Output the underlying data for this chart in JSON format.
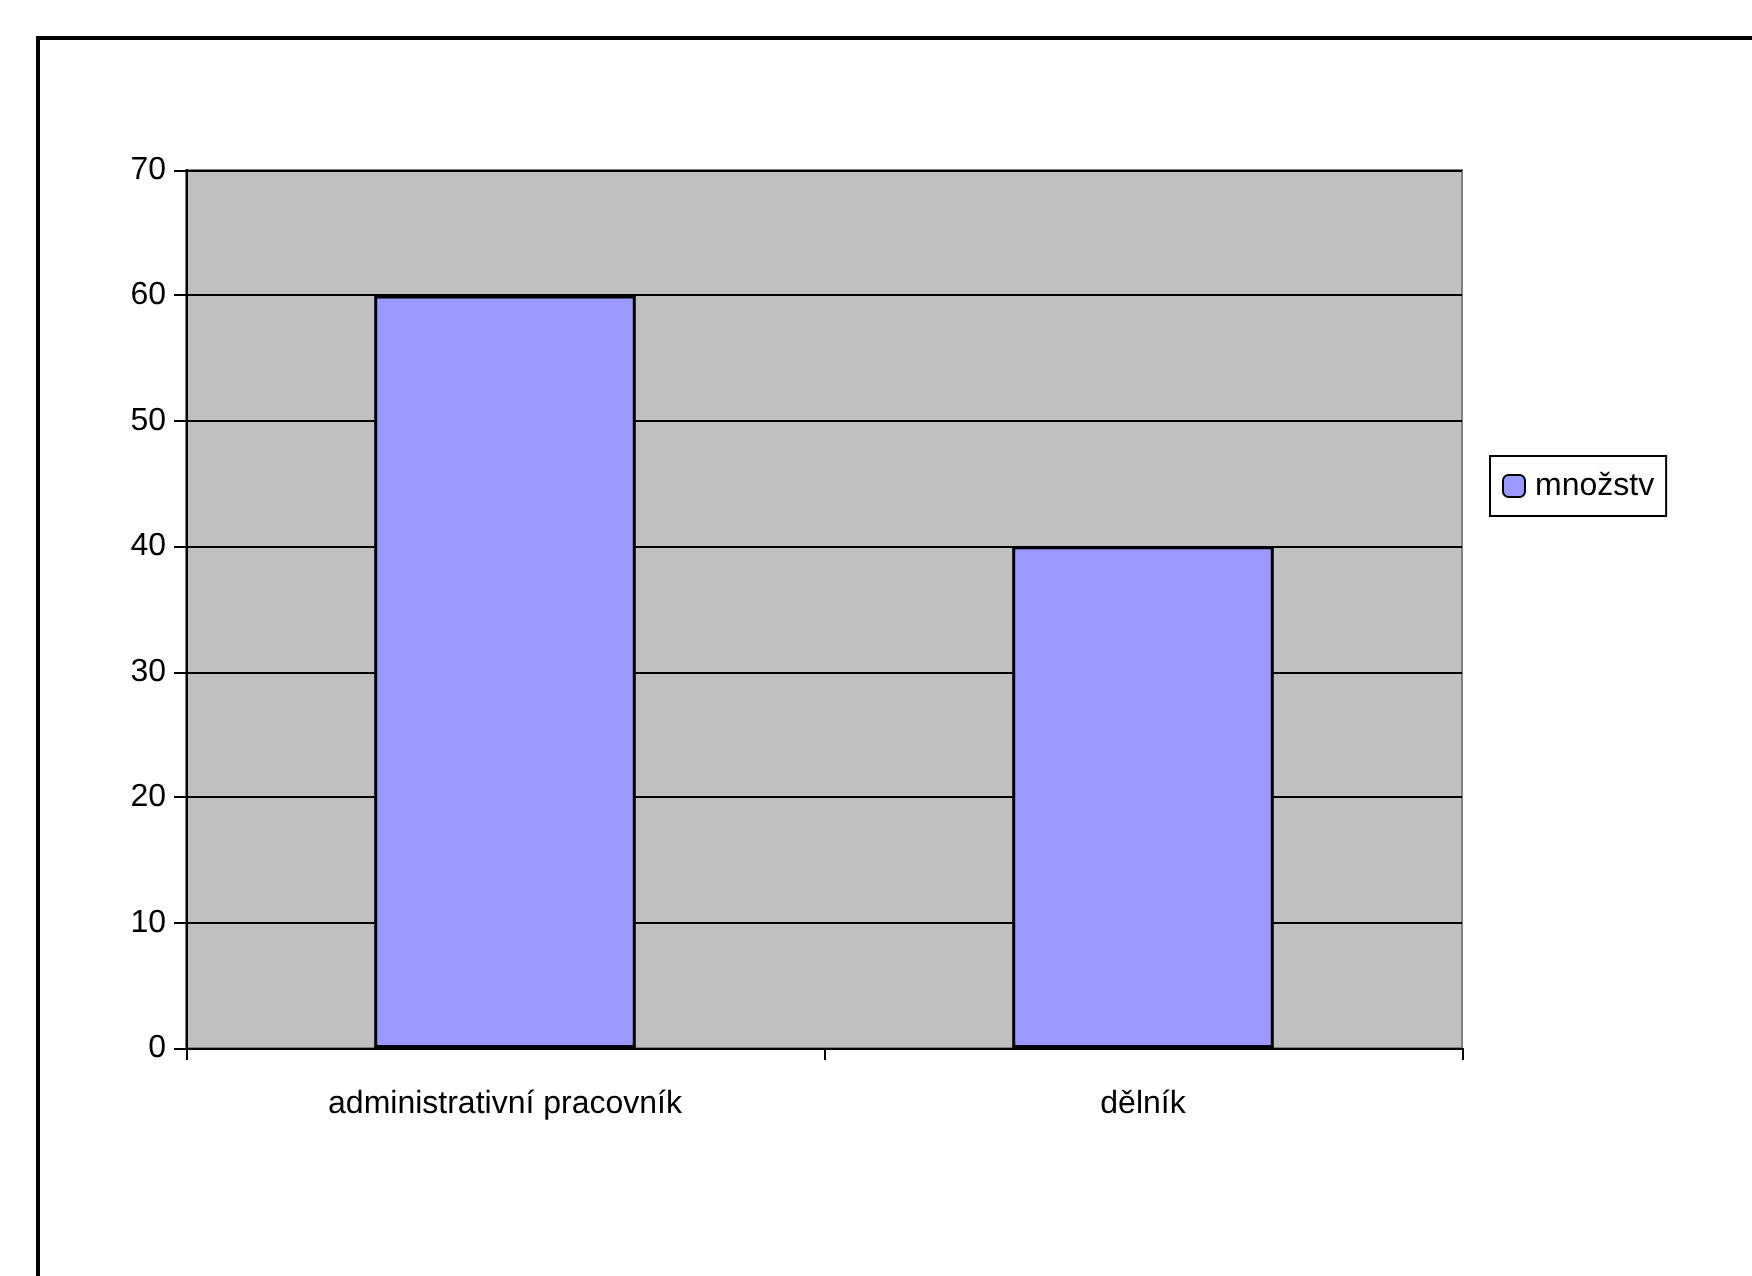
{
  "chart_data": {
    "type": "bar",
    "categories": [
      "administrativní pracovník",
      "dělník"
    ],
    "series": [
      {
        "name": "množstv",
        "color": "#9999ff",
        "values": [
          60,
          40
        ]
      }
    ],
    "ylim": [
      0,
      70
    ],
    "yticks": [
      0,
      10,
      20,
      30,
      40,
      50,
      60,
      70
    ],
    "grid": "y",
    "legend": "right"
  }
}
